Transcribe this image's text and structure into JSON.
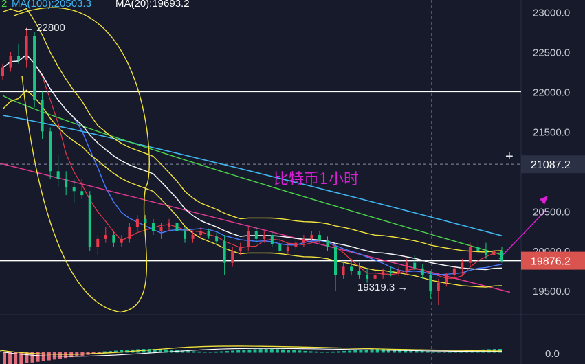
{
  "header": {
    "items": [
      {
        "prefix": "2",
        "label": "MA(100):20503.3",
        "color": "#3fb6f0"
      },
      {
        "label": "MA(20):19693.2",
        "color": "#ffffff"
      }
    ]
  },
  "annotations": {
    "high_label": "← 22800",
    "low_label": "19319.3 →",
    "title_cn": "比特币1小时",
    "crosshair_plus": "+"
  },
  "colors": {
    "background": "#161a2b",
    "up": "#e6394c",
    "down": "#16c784",
    "ma_white": "#f4f4f4",
    "ma_blue": "#3fb6f0",
    "ma_green": "#4bd34a",
    "bollinger": "#f2e33c",
    "trendline": "#e0398e",
    "arrow": "#d91fd3",
    "price_tag": "#d9534f"
  },
  "chart_data": {
    "type": "candlestick",
    "y_axis": {
      "ticks": [
        "23000.0",
        "22500.0",
        "22000.0",
        "21500.0",
        "21087.2",
        "20500.0",
        "20000.0",
        "19876.2",
        "19500.0"
      ],
      "ylim": [
        19200,
        23150
      ]
    },
    "sub_axis": {
      "ticks": [
        "0.0"
      ]
    },
    "highlights": {
      "crosshair_price": "21087.2",
      "current_price": "19876.2",
      "high": 22800,
      "low": 19319.3
    },
    "horizontal_lines": [
      22000,
      19876.2
    ],
    "candles": [
      [
        22200,
        22350,
        22150,
        22300
      ],
      [
        22300,
        22500,
        22250,
        22450
      ],
      [
        22450,
        22600,
        22350,
        22400
      ],
      [
        22400,
        22800,
        22300,
        22700
      ],
      [
        22700,
        22750,
        21800,
        21900
      ],
      [
        21900,
        22000,
        21400,
        21500
      ],
      [
        21500,
        21550,
        20900,
        21000
      ],
      [
        21000,
        21200,
        20800,
        20900
      ],
      [
        20900,
        21000,
        20700,
        20800
      ],
      [
        20800,
        20900,
        20600,
        20750
      ],
      [
        20750,
        20900,
        20650,
        20700
      ],
      [
        20700,
        20750,
        20000,
        20050
      ],
      [
        20050,
        20200,
        19950,
        20150
      ],
      [
        20150,
        20300,
        20100,
        20200
      ],
      [
        20200,
        20250,
        20050,
        20100
      ],
      [
        20100,
        20200,
        20050,
        20150
      ],
      [
        20150,
        20350,
        20100,
        20300
      ],
      [
        20300,
        20450,
        20250,
        20400
      ],
      [
        20400,
        20450,
        20300,
        20350
      ],
      [
        20350,
        20400,
        20200,
        20250
      ],
      [
        20250,
        20350,
        20150,
        20300
      ],
      [
        20300,
        20400,
        20250,
        20350
      ],
      [
        20350,
        20380,
        20200,
        20250
      ],
      [
        20250,
        20300,
        20100,
        20150
      ],
      [
        20150,
        20250,
        20100,
        20200
      ],
      [
        20200,
        20300,
        20150,
        20250
      ],
      [
        20250,
        20280,
        20150,
        20180
      ],
      [
        20180,
        20230,
        20080,
        20120
      ],
      [
        20120,
        20200,
        19700,
        19850
      ],
      [
        19850,
        20050,
        19800,
        20000
      ],
      [
        20000,
        20100,
        19950,
        20050
      ],
      [
        20050,
        20300,
        20000,
        20250
      ],
      [
        20250,
        20300,
        20100,
        20150
      ],
      [
        20150,
        20250,
        20100,
        20200
      ],
      [
        20200,
        20230,
        20050,
        20080
      ],
      [
        20080,
        20150,
        19950,
        20000
      ],
      [
        20000,
        20100,
        19950,
        20050
      ],
      [
        20050,
        20150,
        20000,
        20100
      ],
      [
        20100,
        20200,
        20050,
        20150
      ],
      [
        20150,
        20250,
        20100,
        20200
      ],
      [
        20200,
        20250,
        20100,
        20130
      ],
      [
        20130,
        20180,
        20000,
        20050
      ],
      [
        20050,
        20100,
        19500,
        19700
      ],
      [
        19700,
        19850,
        19650,
        19800
      ],
      [
        19800,
        19900,
        19700,
        19750
      ],
      [
        19750,
        19850,
        19650,
        19700
      ],
      [
        19700,
        19780,
        19600,
        19650
      ],
      [
        19650,
        19750,
        19600,
        19700
      ],
      [
        19700,
        19780,
        19650,
        19750
      ],
      [
        19750,
        19800,
        19680,
        19720
      ],
      [
        19720,
        19800,
        19680,
        19760
      ],
      [
        19760,
        19900,
        19700,
        19850
      ],
      [
        19850,
        19950,
        19750,
        19780
      ],
      [
        19780,
        19830,
        19650,
        19700
      ],
      [
        19700,
        19750,
        19400,
        19500
      ],
      [
        19500,
        19650,
        19320,
        19600
      ],
      [
        19600,
        19720,
        19550,
        19700
      ],
      [
        19700,
        19800,
        19650,
        19780
      ],
      [
        19780,
        19900,
        19700,
        19850
      ],
      [
        19850,
        20100,
        19800,
        20050
      ],
      [
        20050,
        20150,
        19950,
        20000
      ],
      [
        20000,
        20100,
        19900,
        19950
      ],
      [
        19950,
        20050,
        19900,
        20000
      ],
      [
        20000,
        20050,
        19850,
        19876
      ]
    ]
  }
}
